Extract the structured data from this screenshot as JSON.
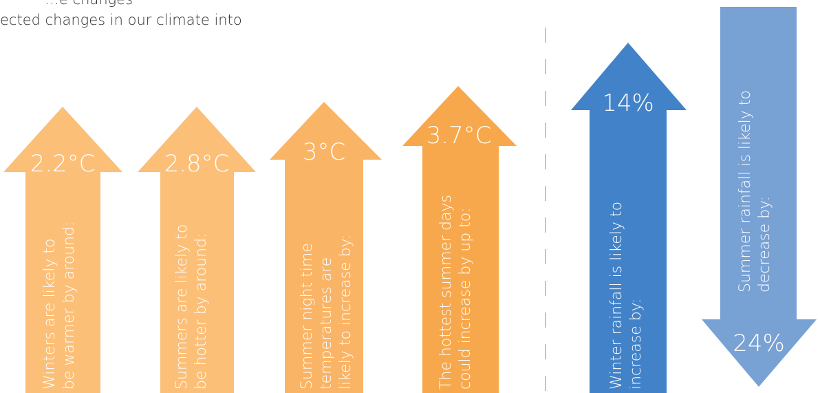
{
  "intro": {
    "line1": "…e changes",
    "line2": "ected changes in our climate into"
  },
  "arrows": [
    {
      "value": "2.2°C",
      "label_lines": [
        "Winters are likely to",
        "be warmer by around:"
      ],
      "direction": "up",
      "color": "#FBBF78"
    },
    {
      "value": "2.8°C",
      "label_lines": [
        "Summers are likely to",
        "be hotter by around:"
      ],
      "direction": "up",
      "color": "#FBBF78"
    },
    {
      "value": "3°C",
      "label_lines": [
        "Summer night time",
        "temperatures are",
        "likely to increase by:"
      ],
      "direction": "up",
      "color": "#FAB465"
    },
    {
      "value": "3.7°C",
      "label_lines": [
        "The hottest summer days",
        "could increase by up to:"
      ],
      "direction": "up",
      "color": "#F7A84C"
    },
    {
      "value": "14%",
      "label_lines": [
        "Winter rainfall is likely to",
        "increase by:"
      ],
      "direction": "up",
      "color": "#4282C8"
    },
    {
      "value": "24%",
      "label_lines": [
        "Summer rainfall is likely to",
        "decrease by:"
      ],
      "direction": "down",
      "color": "#78A1D4"
    }
  ]
}
